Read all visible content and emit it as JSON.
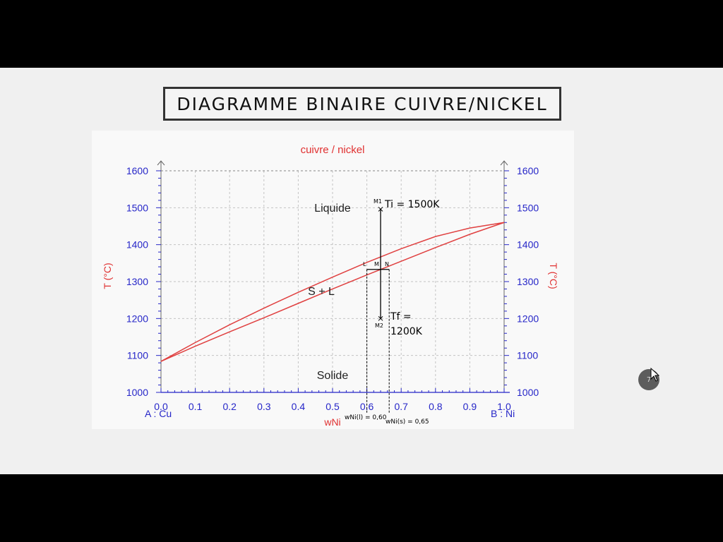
{
  "slide": {
    "title": "DIAGRAMME BINAIRE CUIVRE/NICKEL",
    "page_number": "7"
  },
  "chart_data": {
    "type": "line",
    "title": "cuivre / nickel",
    "xlabel": "wNi",
    "ylabel": "T (°C)",
    "ylabel_right": "T (°C)",
    "xlim": [
      0.0,
      1.0
    ],
    "ylim": [
      1000,
      1600
    ],
    "xticks": [
      "0.0",
      "0.1",
      "0.2",
      "0.3",
      "0.4",
      "0.5",
      "0.6",
      "0.7",
      "0.8",
      "0.9",
      "1.0"
    ],
    "yticks": [
      "1000",
      "1100",
      "1200",
      "1300",
      "1400",
      "1500",
      "1600"
    ],
    "x_end_labels": {
      "left": "A : Cu",
      "right": "B : Ni"
    },
    "grid": true,
    "series": [
      {
        "name": "",
        "x": [
          0.0,
          0.1,
          0.2,
          0.3,
          0.4,
          0.5,
          0.6,
          0.7,
          0.8,
          0.9,
          1.0
        ],
        "y": [
          1084,
          1135,
          1183,
          1228,
          1271,
          1312,
          1352,
          1389,
          1422,
          1445,
          1460
        ],
        "color": "#e04040"
      },
      {
        "name": "",
        "x": [
          0.0,
          0.1,
          0.2,
          0.3,
          0.4,
          0.5,
          0.6,
          0.7,
          0.8,
          0.9,
          1.0
        ],
        "y": [
          1084,
          1125,
          1164,
          1202,
          1241,
          1280,
          1318,
          1355,
          1392,
          1428,
          1460
        ],
        "color": "#e04040"
      }
    ],
    "regions": [
      {
        "label": "Liquide",
        "x": 0.5,
        "y": 1500
      },
      {
        "label": "S + L",
        "x": 0.47,
        "y": 1280
      },
      {
        "label": "Solide",
        "x": 0.5,
        "y": 1045
      }
    ],
    "annotations": {
      "vertical_line": {
        "x": 0.64,
        "y_top": 1496,
        "y_bottom": 1200
      },
      "tie_line": {
        "y": 1333,
        "x_left": 0.6,
        "x_right": 0.665
      },
      "labels": {
        "m1": "M1",
        "ti": "Ti = 1500K",
        "l": "L",
        "m": "M",
        "n": "N",
        "m2": "M2",
        "tf_1": "Tf =",
        "tf_2": "1200K",
        "wl": "wNi(l) = 0,60",
        "ws": "wNi(s) = 0,65"
      }
    },
    "colors": {
      "axis": "#2626c8",
      "curve": "#e04040",
      "title": "#e03030"
    }
  }
}
